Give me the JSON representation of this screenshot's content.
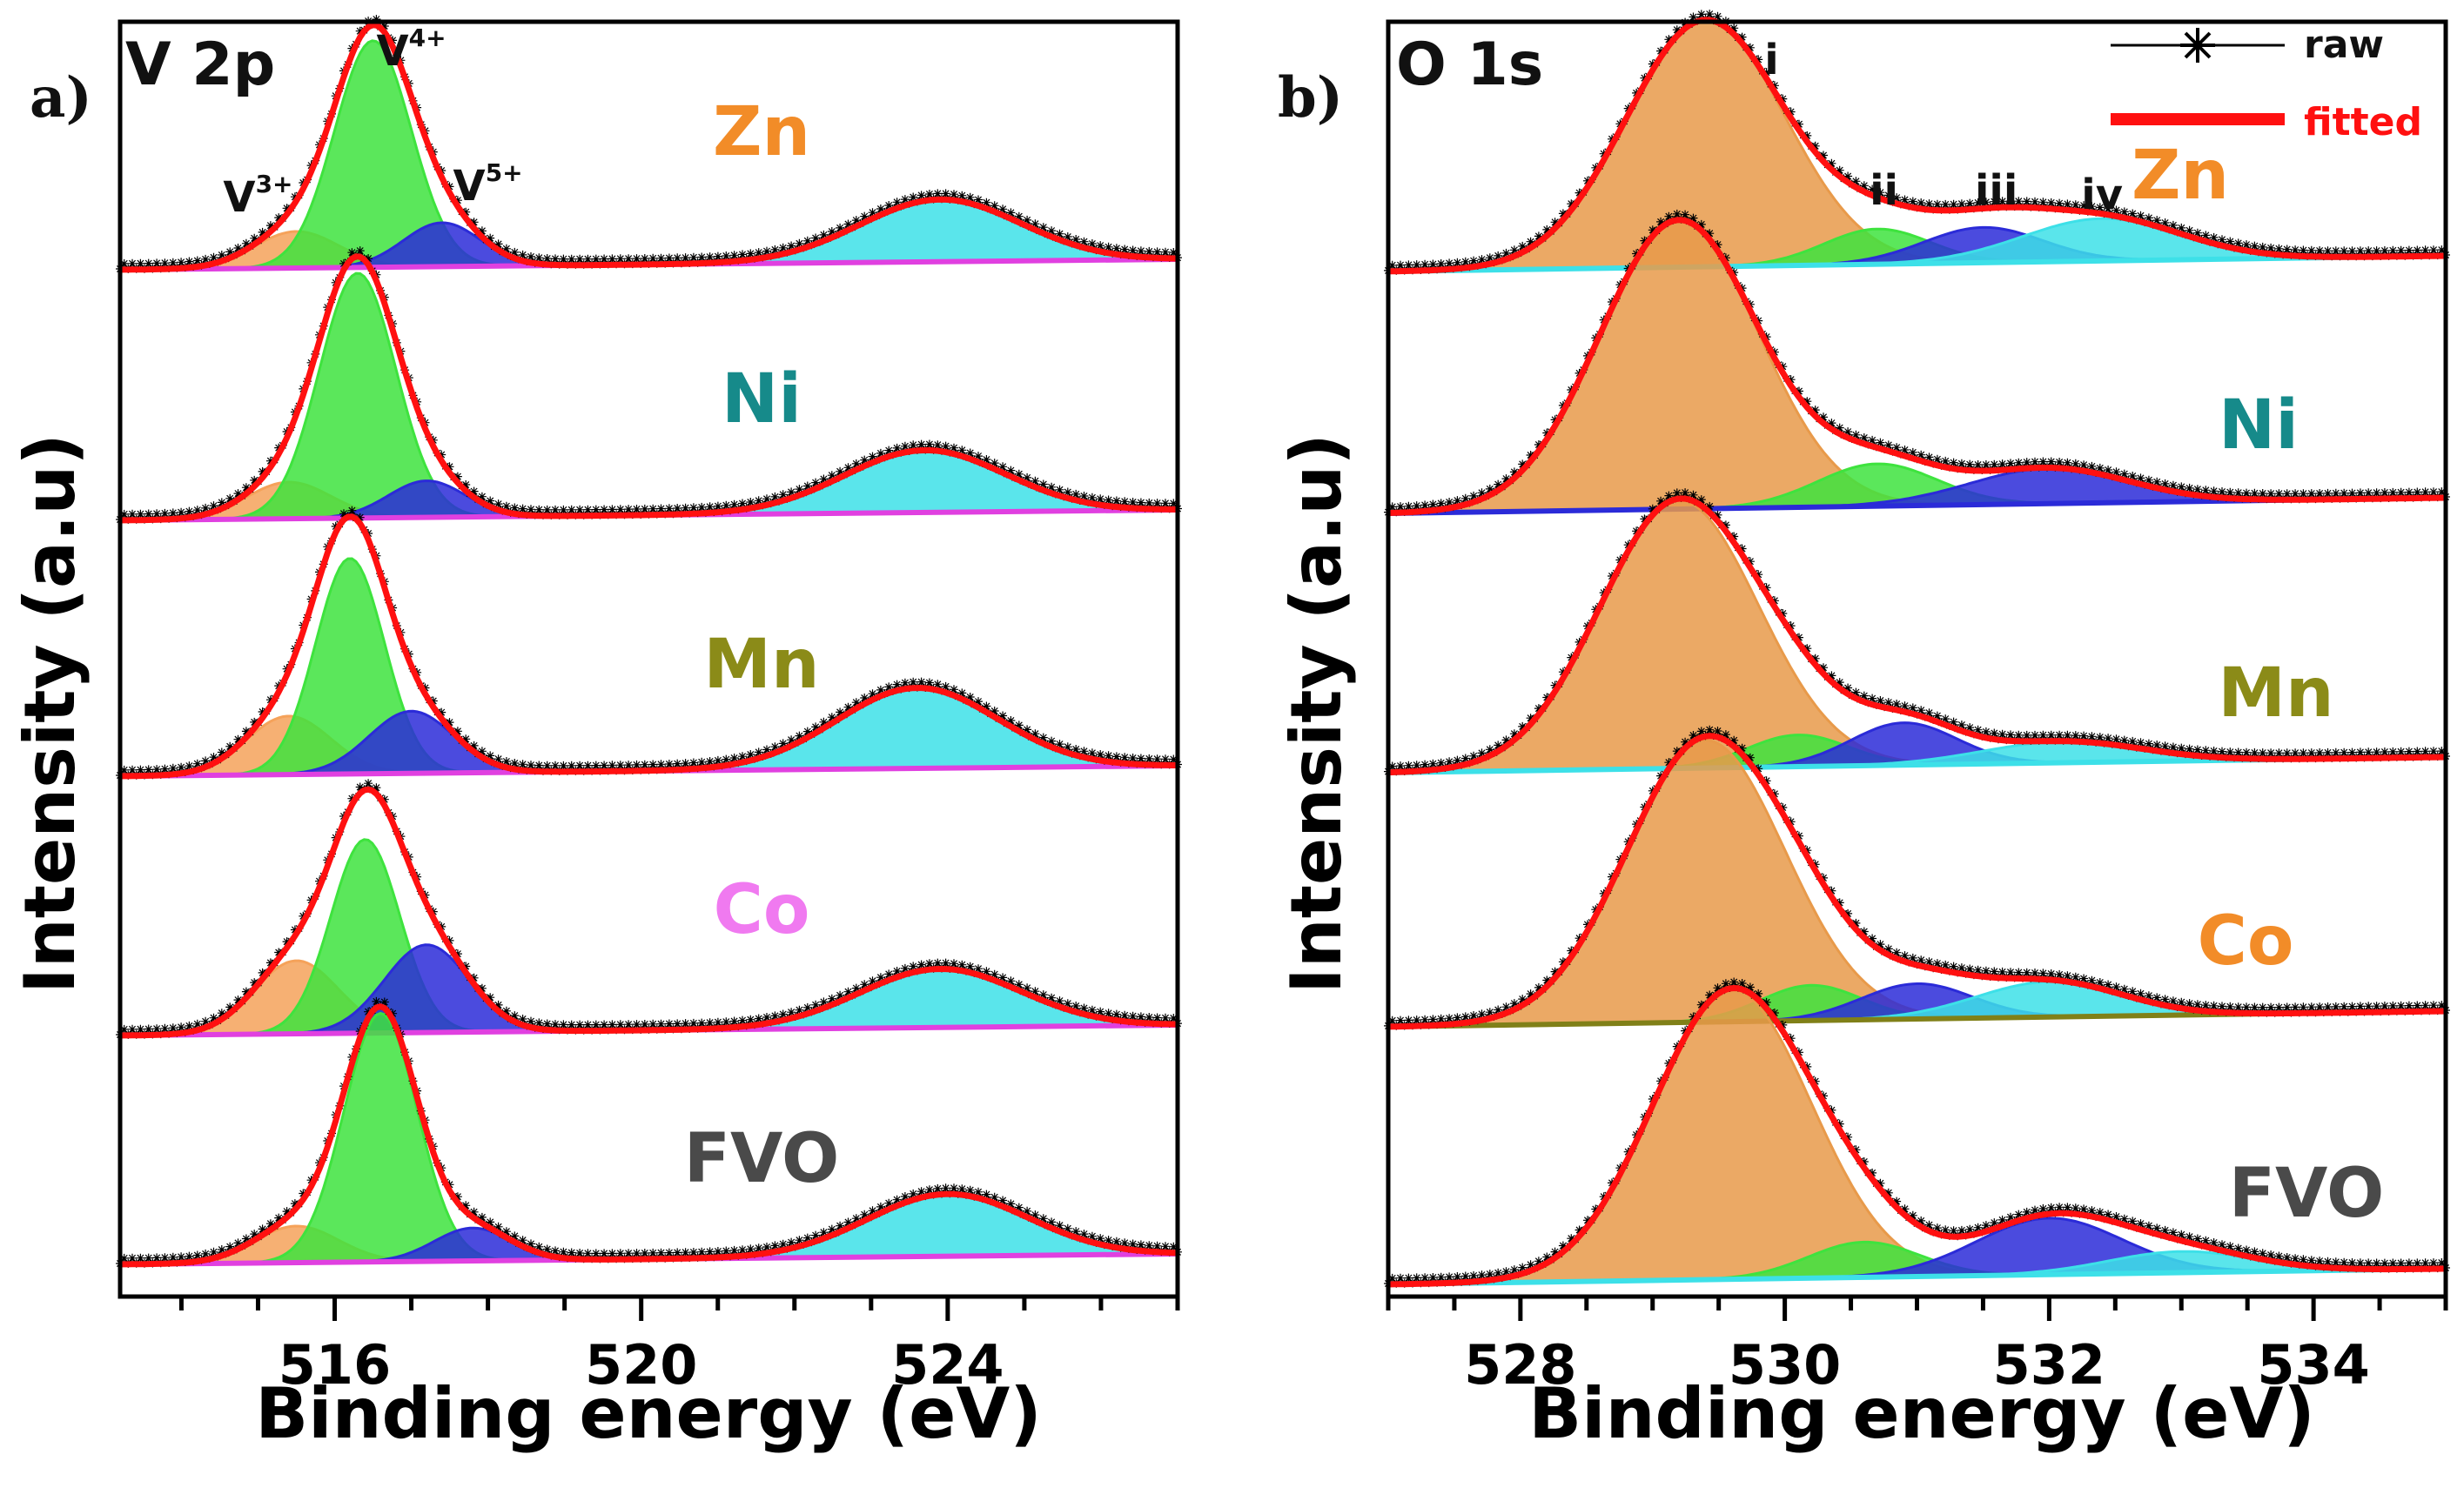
{
  "chart_data": [
    {
      "panel": "a)",
      "title": "V 2p",
      "type": "line",
      "subtype": "stacked XPS spectra with fitted peak components",
      "xlabel": "Binding energy (eV)",
      "ylabel": "Intensity (a.u)",
      "xlim": [
        513.2,
        527.0
      ],
      "xticks": [
        516,
        520,
        524
      ],
      "xtick_labels": [
        "516",
        "520",
        "524"
      ],
      "annotations": [
        {
          "text": "V",
          "sup": "3+",
          "x": 515.0
        },
        {
          "text": "V",
          "sup": "4+",
          "x": 517.0
        },
        {
          "text": "V",
          "sup": "5+",
          "x": 518.0
        }
      ],
      "background_color": "#e040e0",
      "series": [
        {
          "name": "Zn",
          "color": "#f28c28",
          "peaks": [
            {
              "component": "V3+",
              "center": 515.5,
              "width": 0.55,
              "height": 0.1,
              "color": "#f5a25a"
            },
            {
              "component": "V4+",
              "center": 516.5,
              "width": 0.5,
              "height": 0.62,
              "color": "#3ee33e"
            },
            {
              "component": "V5+",
              "center": 517.4,
              "width": 0.5,
              "height": 0.12,
              "color": "#2b2bd8"
            },
            {
              "component": "V 2p1/2",
              "center": 523.9,
              "width": 1.05,
              "height": 0.17,
              "color": "#3de0e8"
            }
          ]
        },
        {
          "name": "Ni",
          "color": "#168a8a",
          "peaks": [
            {
              "component": "V3+",
              "center": 515.4,
              "width": 0.55,
              "height": 0.1,
              "color": "#f5a25a"
            },
            {
              "component": "V4+",
              "center": 516.3,
              "width": 0.5,
              "height": 0.67,
              "color": "#3ee33e"
            },
            {
              "component": "V5+",
              "center": 517.2,
              "width": 0.5,
              "height": 0.1,
              "color": "#2b2bd8"
            },
            {
              "component": "V 2p1/2",
              "center": 523.7,
              "width": 1.05,
              "height": 0.17,
              "color": "#3de0e8"
            }
          ]
        },
        {
          "name": "Mn",
          "color": "#8b8b18",
          "peaks": [
            {
              "component": "V3+",
              "center": 515.4,
              "width": 0.55,
              "height": 0.16,
              "color": "#f5a25a"
            },
            {
              "component": "V4+",
              "center": 516.2,
              "width": 0.45,
              "height": 0.59,
              "color": "#3ee33e"
            },
            {
              "component": "V5+",
              "center": 517.0,
              "width": 0.55,
              "height": 0.17,
              "color": "#2b2bd8"
            },
            {
              "component": "V 2p1/2",
              "center": 523.6,
              "width": 1.05,
              "height": 0.22,
              "color": "#3de0e8"
            }
          ]
        },
        {
          "name": "Co",
          "color": "#f07af0",
          "peaks": [
            {
              "component": "V3+",
              "center": 515.5,
              "width": 0.55,
              "height": 0.2,
              "color": "#f5a25a"
            },
            {
              "component": "V4+",
              "center": 516.4,
              "width": 0.45,
              "height": 0.53,
              "color": "#3ee33e"
            },
            {
              "component": "V5+",
              "center": 517.2,
              "width": 0.55,
              "height": 0.24,
              "color": "#2b2bd8"
            },
            {
              "component": "V 2p1/2",
              "center": 523.9,
              "width": 1.05,
              "height": 0.16,
              "color": "#3de0e8"
            }
          ]
        },
        {
          "name": "FVO",
          "color": "#4a4a4a",
          "peaks": [
            {
              "component": "V3+",
              "center": 515.5,
              "width": 0.55,
              "height": 0.1,
              "color": "#f5a25a"
            },
            {
              "component": "V4+",
              "center": 516.6,
              "width": 0.48,
              "height": 0.68,
              "color": "#3ee33e"
            },
            {
              "component": "V5+",
              "center": 517.8,
              "width": 0.5,
              "height": 0.09,
              "color": "#2b2bd8"
            },
            {
              "component": "V 2p1/2",
              "center": 524.0,
              "width": 1.05,
              "height": 0.17,
              "color": "#3de0e8"
            }
          ]
        }
      ]
    },
    {
      "panel": "b)",
      "title": "O 1s",
      "type": "line",
      "subtype": "stacked XPS spectra with fitted peak components",
      "xlabel": "Binding energy (eV)",
      "ylabel": "Intensity (a.u)",
      "xlim": [
        527.0,
        535.0
      ],
      "xticks": [
        528,
        530,
        532,
        534
      ],
      "xtick_labels": [
        "528",
        "530",
        "532",
        "534"
      ],
      "annotations": [
        {
          "text": "i",
          "x": 529.9
        },
        {
          "text": "ii",
          "x": 530.75
        },
        {
          "text": "iii",
          "x": 531.6
        },
        {
          "text": "iv",
          "x": 532.4
        }
      ],
      "legend": [
        {
          "label": "raw",
          "style": "black line with star markers"
        },
        {
          "label": "fitted",
          "style": "red line"
        }
      ],
      "series": [
        {
          "name": "Zn",
          "color": "#f28c28",
          "background_color": "#3de0e8",
          "peaks": [
            {
              "component": "i",
              "center": 529.4,
              "width": 0.6,
              "height": 0.7,
              "color": "#e89a4a"
            },
            {
              "component": "ii",
              "center": 530.7,
              "width": 0.4,
              "height": 0.1,
              "color": "#3ee33e"
            },
            {
              "component": "iii",
              "center": 531.5,
              "width": 0.45,
              "height": 0.1,
              "color": "#2b2bd8"
            },
            {
              "component": "iv",
              "center": 532.4,
              "width": 0.6,
              "height": 0.12,
              "color": "#3de0e8"
            }
          ]
        },
        {
          "name": "Ni",
          "color": "#168a8a",
          "background_color": "#2b2bd8",
          "peaks": [
            {
              "component": "i",
              "center": 529.2,
              "width": 0.6,
              "height": 0.82,
              "color": "#e89a4a"
            },
            {
              "component": "ii",
              "center": 530.7,
              "width": 0.45,
              "height": 0.12,
              "color": "#3ee33e"
            },
            {
              "component": "iii",
              "center": 532.0,
              "width": 0.6,
              "height": 0.1,
              "color": "#2b2bd8"
            }
          ]
        },
        {
          "name": "Mn",
          "color": "#8b8b18",
          "background_color": "#3de0e8",
          "peaks": [
            {
              "component": "i",
              "center": 529.2,
              "width": 0.6,
              "height": 0.76,
              "color": "#e89a4a"
            },
            {
              "component": "ii",
              "center": 530.1,
              "width": 0.38,
              "height": 0.09,
              "color": "#3ee33e"
            },
            {
              "component": "iii",
              "center": 530.9,
              "width": 0.4,
              "height": 0.12,
              "color": "#2b2bd8"
            },
            {
              "component": "iv",
              "center": 532.1,
              "width": 0.6,
              "height": 0.06,
              "color": "#3de0e8"
            }
          ]
        },
        {
          "name": "Co",
          "color": "#f28c28",
          "background_color": "#808018",
          "peaks": [
            {
              "component": "i",
              "center": 529.4,
              "width": 0.6,
              "height": 0.8,
              "color": "#e89a4a"
            },
            {
              "component": "ii",
              "center": 530.2,
              "width": 0.38,
              "height": 0.1,
              "color": "#3ee33e"
            },
            {
              "component": "iii",
              "center": 531.0,
              "width": 0.42,
              "height": 0.1,
              "color": "#2b2bd8"
            },
            {
              "component": "iv",
              "center": 532.0,
              "width": 0.55,
              "height": 0.1,
              "color": "#3de0e8"
            }
          ]
        },
        {
          "name": "FVO",
          "color": "#4a4a4a",
          "background_color": "#3de0e8",
          "peaks": [
            {
              "component": "i",
              "center": 529.6,
              "width": 0.6,
              "height": 0.82,
              "color": "#e89a4a"
            },
            {
              "component": "ii",
              "center": 530.6,
              "width": 0.42,
              "height": 0.1,
              "color": "#3ee33e"
            },
            {
              "component": "iii",
              "center": 532.0,
              "width": 0.55,
              "height": 0.16,
              "color": "#2b2bd8"
            },
            {
              "component": "iv",
              "center": 533.0,
              "width": 0.55,
              "height": 0.06,
              "color": "#3de0e8"
            }
          ]
        }
      ]
    }
  ]
}
